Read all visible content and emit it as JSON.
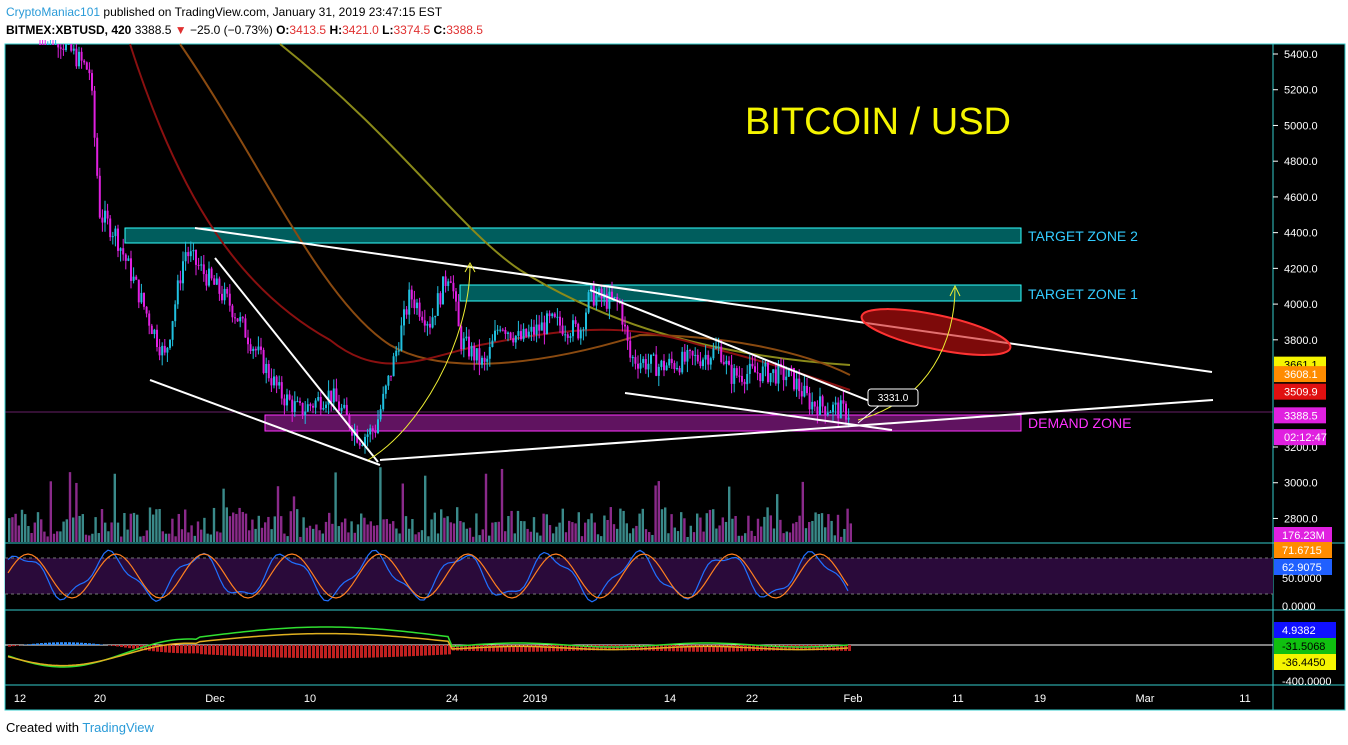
{
  "header": {
    "author": "CryptoManiac101",
    "published": "published on TradingView.com, January 31, 2019 23:47:15 EST",
    "symbol": "BITMEX:XBTUSD, 420",
    "last": "3388.5",
    "arrow": "▼",
    "change": "−25.0 (−0.73%)",
    "o_label": "O:",
    "o": "3413.5",
    "h_label": "H:",
    "h": "3421.0",
    "l_label": "L:",
    "l": "3374.5",
    "c_label": "C:",
    "c": "3388.5"
  },
  "annotations": {
    "title": "BITCOIN / USD",
    "zone2": "TARGET ZONE 2",
    "zone1": "TARGET ZONE 1",
    "demand": "DEMAND ZONE",
    "point": "3331.0"
  },
  "price_axis": [
    {
      "value": 5400,
      "label": "5400.0"
    },
    {
      "value": 5200,
      "label": "5200.0"
    },
    {
      "value": 5000,
      "label": "5000.0"
    },
    {
      "value": 4800,
      "label": "4800.0"
    },
    {
      "value": 4600,
      "label": "4600.0"
    },
    {
      "value": 4400,
      "label": "4400.0"
    },
    {
      "value": 4200,
      "label": "4200.0"
    },
    {
      "value": 4000,
      "label": "4000.0"
    },
    {
      "value": 3800,
      "label": "3800.0"
    },
    {
      "value": 3200,
      "label": "3200.0"
    },
    {
      "value": 3000,
      "label": "3000.0"
    },
    {
      "value": 2800,
      "label": "2800.0"
    }
  ],
  "badges": [
    {
      "value": 3661.1,
      "label": "3661.1"
    },
    {
      "value": 3608.1,
      "label": "3608.1"
    },
    {
      "value": 3509.9,
      "label": "3509.9"
    },
    {
      "value": 3388.5,
      "label": "3388.5"
    },
    {
      "value": 3300,
      "label": "02:12:47"
    }
  ],
  "volume_badge": "176.23M",
  "stoch_axis": [
    "71.6715",
    "62.9075",
    "50.0000",
    "0.0000"
  ],
  "macd_axis": [
    "4.9382",
    "-31.5068",
    "-36.4450",
    "-400.0000"
  ],
  "time_axis": [
    "12",
    "20",
    "Dec",
    "10",
    "24",
    "2019",
    "14",
    "22",
    "Feb",
    "11",
    "19",
    "Mar",
    "11"
  ],
  "footer": {
    "created": "Created with",
    "brand": "TradingView"
  }
}
